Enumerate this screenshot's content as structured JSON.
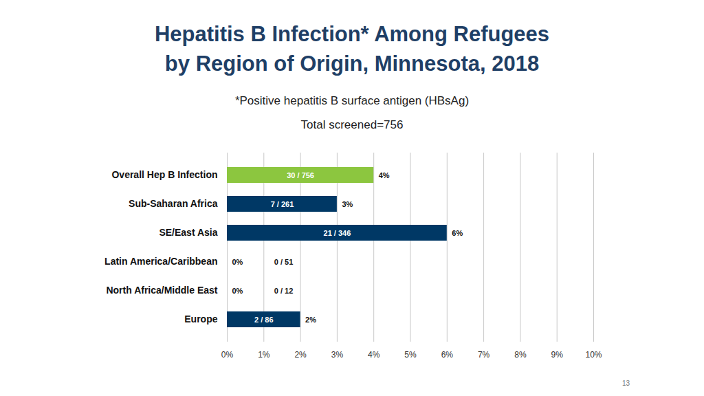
{
  "chart_data": {
    "type": "bar",
    "orientation": "horizontal",
    "title": "Hepatitis B Infection* Among Refugees\nby Region of Origin, Minnesota, 2018",
    "subtitle": "*Positive hepatitis B surface antigen (HBsAg)",
    "note": "Total screened=756",
    "categories": [
      "Overall Hep B Infection",
      "Sub-Saharan Africa",
      "SE/East Asia",
      "Latin America/Caribbean",
      "North Africa/Middle East",
      "Europe"
    ],
    "values": [
      4,
      3,
      6,
      0,
      0,
      2
    ],
    "value_labels": [
      "4%",
      "3%",
      "6%",
      "0%",
      "0%",
      "2%"
    ],
    "count_labels": [
      "30 / 756",
      "7 / 261",
      "21 / 346",
      "0 / 51",
      "0 / 12",
      "2 / 86"
    ],
    "colors": [
      "#8cc63f",
      "#003865",
      "#003865",
      "#003865",
      "#003865",
      "#003865"
    ],
    "xlim": [
      0,
      10
    ],
    "xticks": [
      {
        "value": 0,
        "label": "0%"
      },
      {
        "value": 1,
        "label": "1%"
      },
      {
        "value": 2,
        "label": "2%"
      },
      {
        "value": 3,
        "label": "3%"
      },
      {
        "value": 4,
        "label": "4%"
      },
      {
        "value": 5,
        "label": "5%"
      },
      {
        "value": 6,
        "label": "6%"
      },
      {
        "value": 7,
        "label": "7%"
      },
      {
        "value": 8,
        "label": "8%"
      },
      {
        "value": 9,
        "label": "9%"
      },
      {
        "value": 10,
        "label": "10%"
      }
    ],
    "grid": true,
    "data_labels": true,
    "page_number": "13"
  }
}
